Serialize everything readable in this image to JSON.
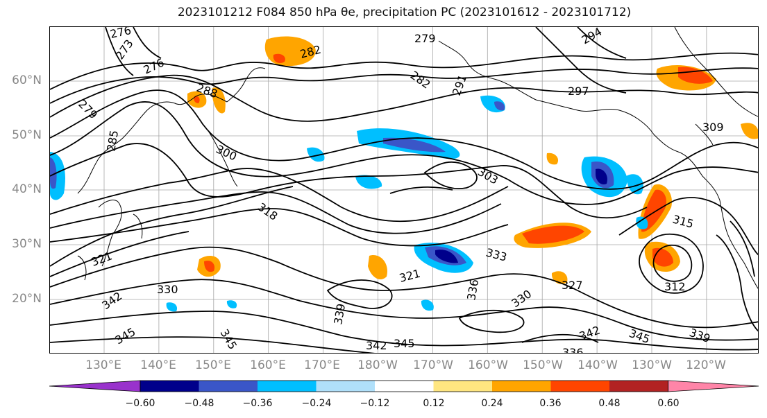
{
  "title": "2023101212 F084 850 hPa θe, precipitation PC (2023101612 - 2023101712)",
  "map": {
    "lat_labels": [
      "60°N",
      "50°N",
      "40°N",
      "30°N",
      "20°N"
    ],
    "lon_labels": [
      "130°E",
      "140°E",
      "150°E",
      "160°E",
      "170°E",
      "180°W",
      "170°W",
      "160°W",
      "150°W",
      "140°W",
      "130°W",
      "120°W"
    ],
    "contour_labels": [
      "276",
      "273",
      "279",
      "282",
      "282",
      "276",
      "288",
      "279",
      "285",
      "294",
      "291",
      "297",
      "300",
      "303",
      "309",
      "318",
      "315",
      "321",
      "333",
      "327",
      "330",
      "312",
      "330",
      "342",
      "339",
      "345",
      "345",
      "342",
      "336",
      "345",
      "336",
      "339",
      "345",
      "342",
      "321"
    ],
    "colors": {
      "contour": "#000000",
      "coast": "#000000",
      "grid": "#888888",
      "axis_labels": "#888888"
    }
  },
  "colorbar": {
    "ticks": [
      "−0.60",
      "−0.48",
      "−0.36",
      "−0.24",
      "−0.12",
      "0.12",
      "0.24",
      "0.36",
      "0.48",
      "0.60"
    ],
    "bins": [
      {
        "color": "#9932cc"
      },
      {
        "color": "#00008b"
      },
      {
        "color": "#3a56c8"
      },
      {
        "color": "#00bfff"
      },
      {
        "color": "#b0e0fa"
      },
      {
        "color": "#ffffff"
      },
      {
        "color": "#ffe680"
      },
      {
        "color": "#ffa500"
      },
      {
        "color": "#ff4500"
      },
      {
        "color": "#b22222"
      },
      {
        "color": "#ff85a8"
      }
    ]
  }
}
